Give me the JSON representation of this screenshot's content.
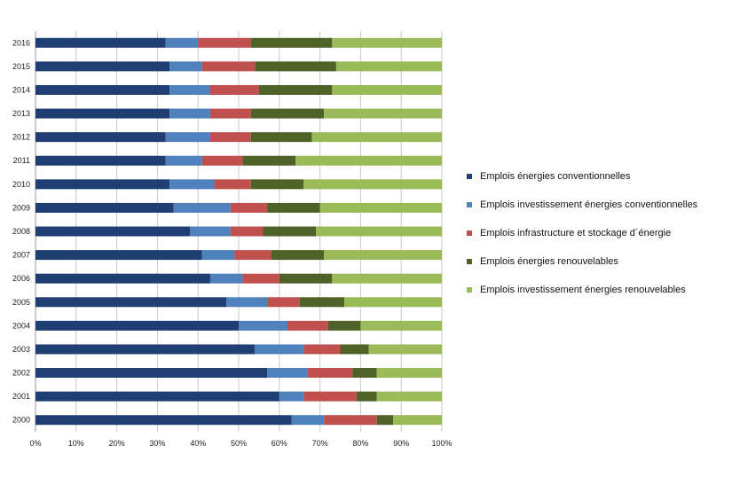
{
  "chart_data": {
    "type": "bar",
    "orientation": "horizontal",
    "stacked": true,
    "percent": true,
    "title": "",
    "xlabel": "",
    "ylabel": "",
    "xlim": [
      0,
      100
    ],
    "grid": true,
    "legend_position": "right",
    "x_ticks": [
      "0%",
      "10%",
      "20%",
      "30%",
      "40%",
      "50%",
      "60%",
      "70%",
      "80%",
      "90%",
      "100%"
    ],
    "categories": [
      "2000",
      "2001",
      "2002",
      "2003",
      "2004",
      "2005",
      "2006",
      "2007",
      "2008",
      "2009",
      "2010",
      "2011",
      "2012",
      "2013",
      "2014",
      "2015",
      "2016"
    ],
    "series": [
      {
        "name": "Emplois énergies conventionnelles",
        "color": "#1f3f73",
        "values": [
          63,
          60,
          57,
          54,
          50,
          47,
          43,
          41,
          38,
          34,
          33,
          32,
          32,
          33,
          33,
          33,
          32
        ]
      },
      {
        "name": "Emplois investissement énergies conventionnelles",
        "color": "#4f81bd",
        "values": [
          8,
          6,
          10,
          12,
          12,
          10,
          8,
          8,
          10,
          14,
          11,
          9,
          11,
          10,
          10,
          8,
          8
        ]
      },
      {
        "name": "Emplois infrastructure et stockage d´énergie",
        "color": "#c0504d",
        "values": [
          13,
          13,
          11,
          9,
          10,
          8,
          9,
          9,
          8,
          9,
          9,
          10,
          10,
          10,
          12,
          13,
          13
        ]
      },
      {
        "name": "Emplois énergies  renouvelables",
        "color": "#4f6228",
        "values": [
          4,
          5,
          6,
          7,
          8,
          11,
          13,
          13,
          13,
          13,
          13,
          13,
          15,
          18,
          18,
          20,
          20
        ]
      },
      {
        "name": "Emplois investissement énergies  renouvelables",
        "color": "#9bbb59",
        "values": [
          12,
          16,
          16,
          18,
          20,
          24,
          27,
          29,
          31,
          30,
          34,
          36,
          32,
          29,
          27,
          26,
          27
        ]
      }
    ]
  }
}
